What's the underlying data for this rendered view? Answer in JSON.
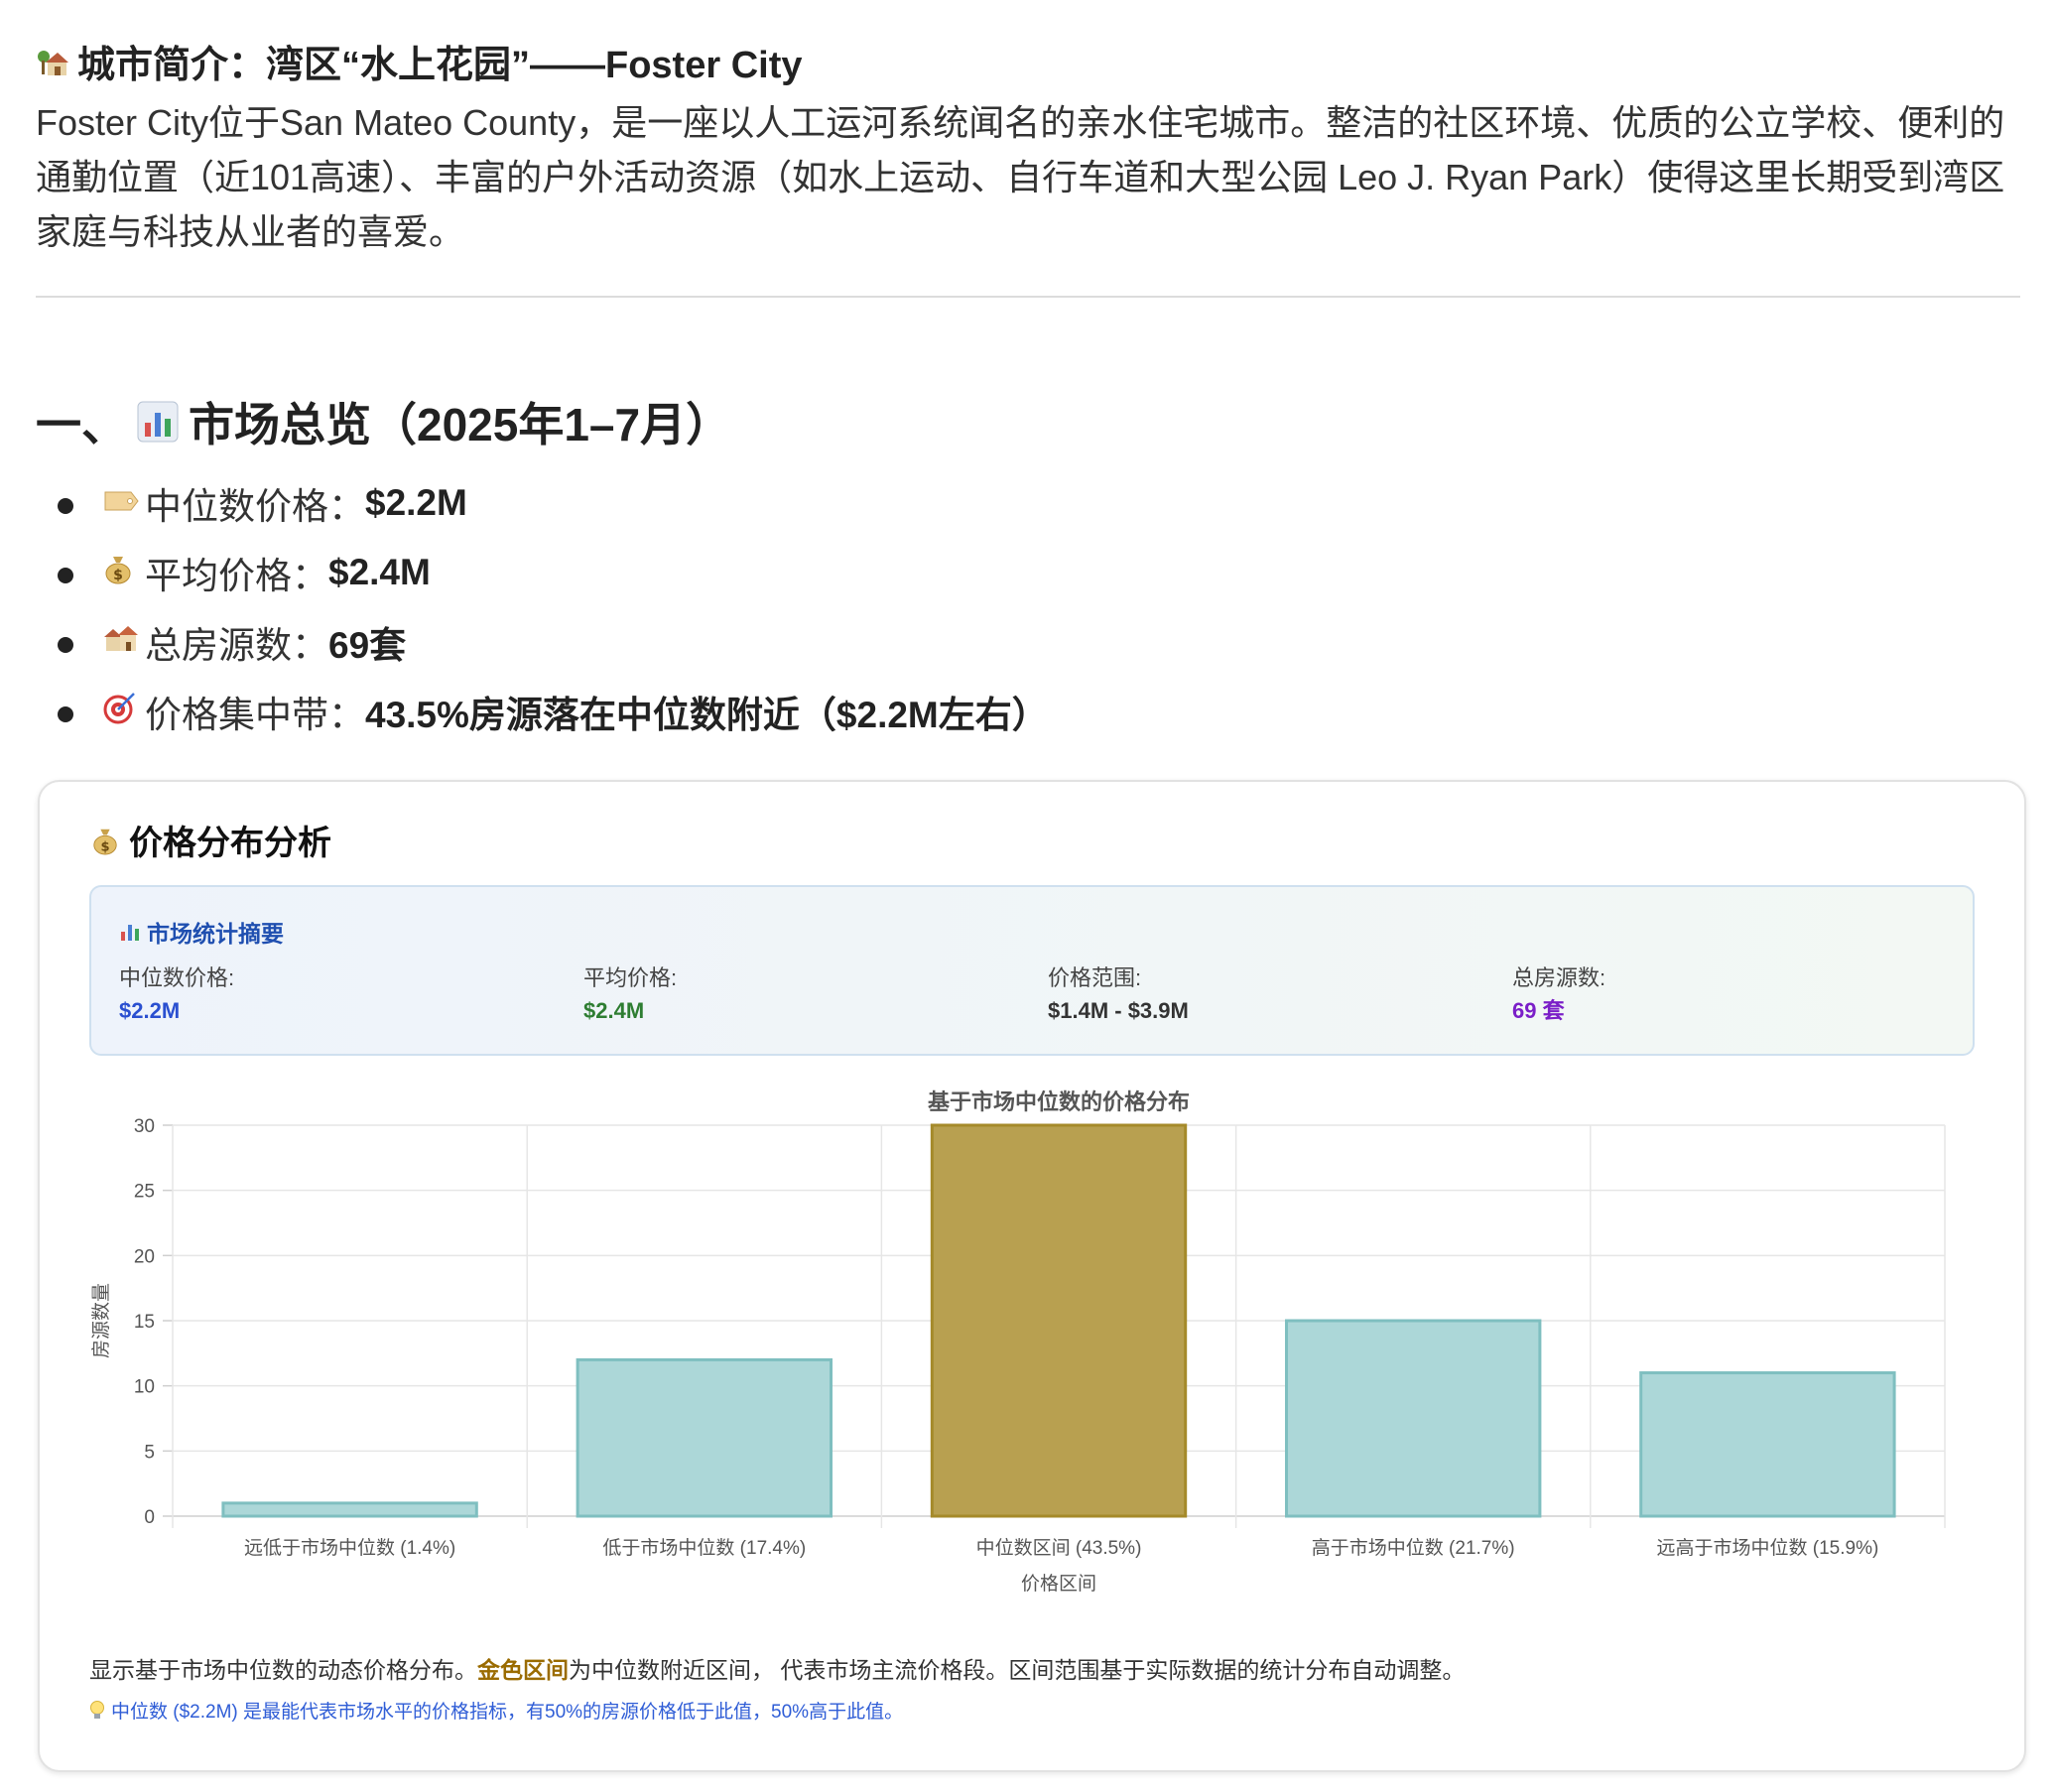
{
  "intro": {
    "icon": "house-with-garden-icon",
    "title": "城市简介：湾区“水上花园”——Foster City",
    "text": "Foster City位于San Mateo County，是一座以人工运河系统闻名的亲水住宅城市。整洁的社区环境、优质的公立学校、便利的通勤位置（近101高速）、丰富的户外活动资源（如水上运动、自行车道和大型公园 Leo J. Ryan Park）使得这里长期受到湾区家庭与科技从业者的喜爱。"
  },
  "overview": {
    "prefix": "一、",
    "icon": "bar-chart-icon",
    "title": "市场总览（2025年1–7月）",
    "items": [
      {
        "icon": "price-tag-icon",
        "label": "中位数价格：",
        "value": "$2.2M"
      },
      {
        "icon": "money-bag-icon",
        "label": "平均价格：",
        "value": "$2.4M"
      },
      {
        "icon": "houses-icon",
        "label": "总房源数：",
        "value": "69套"
      },
      {
        "icon": "target-icon",
        "label": "价格集中带：",
        "value": "43.5%房源落在中位数附近（$2.2M左右）"
      }
    ]
  },
  "card": {
    "icon": "money-bag-icon",
    "title": "价格分布分析",
    "summary": {
      "icon": "bar-chart-icon",
      "title": "市场统计摘要",
      "stats": [
        {
          "label": "中位数价格:",
          "value": "$2.2M",
          "color": "#2a4fd0"
        },
        {
          "label": "平均价格:",
          "value": "$2.4M",
          "color": "#2e7d32"
        },
        {
          "label": "价格范围:",
          "value": "$1.4M - $3.9M",
          "color": "#333333"
        },
        {
          "label": "总房源数:",
          "value": "69 套",
          "color": "#7b1fc8"
        }
      ]
    },
    "footnote_pre": "显示基于市场中位数的动态价格分布。",
    "footnote_gold": "金色区间",
    "footnote_post": "为中位数附近区间， 代表市场主流价格段。区间范围基于实际数据的统计分布自动调整。",
    "tip_icon": "lightbulb-icon",
    "tip": "中位数 ($2.2M) 是最能代表市场水平的价格指标，有50%的房源价格低于此值，50%高于此值。"
  },
  "chart_data": {
    "type": "bar",
    "title": "基于市场中位数的价格分布",
    "xlabel": "价格区间",
    "ylabel": "房源数量",
    "ylim": [
      0,
      30
    ],
    "yticks": [
      0,
      5,
      10,
      15,
      20,
      25,
      30
    ],
    "grid": true,
    "categories": [
      "远低于市场中位数 (1.4%)",
      "低于市场中位数 (17.4%)",
      "中位数区间 (43.5%)",
      "高于市场中位数 (21.7%)",
      "远高于市场中位数 (15.9%)"
    ],
    "values": [
      1,
      12,
      30,
      15,
      11
    ],
    "colors": [
      "#acd7d8",
      "#acd7d8",
      "#b8a050",
      "#acd7d8",
      "#acd7d8"
    ],
    "border_colors": [
      "#7fbfc0",
      "#7fbfc0",
      "#a58a2a",
      "#7fbfc0",
      "#7fbfc0"
    ]
  }
}
